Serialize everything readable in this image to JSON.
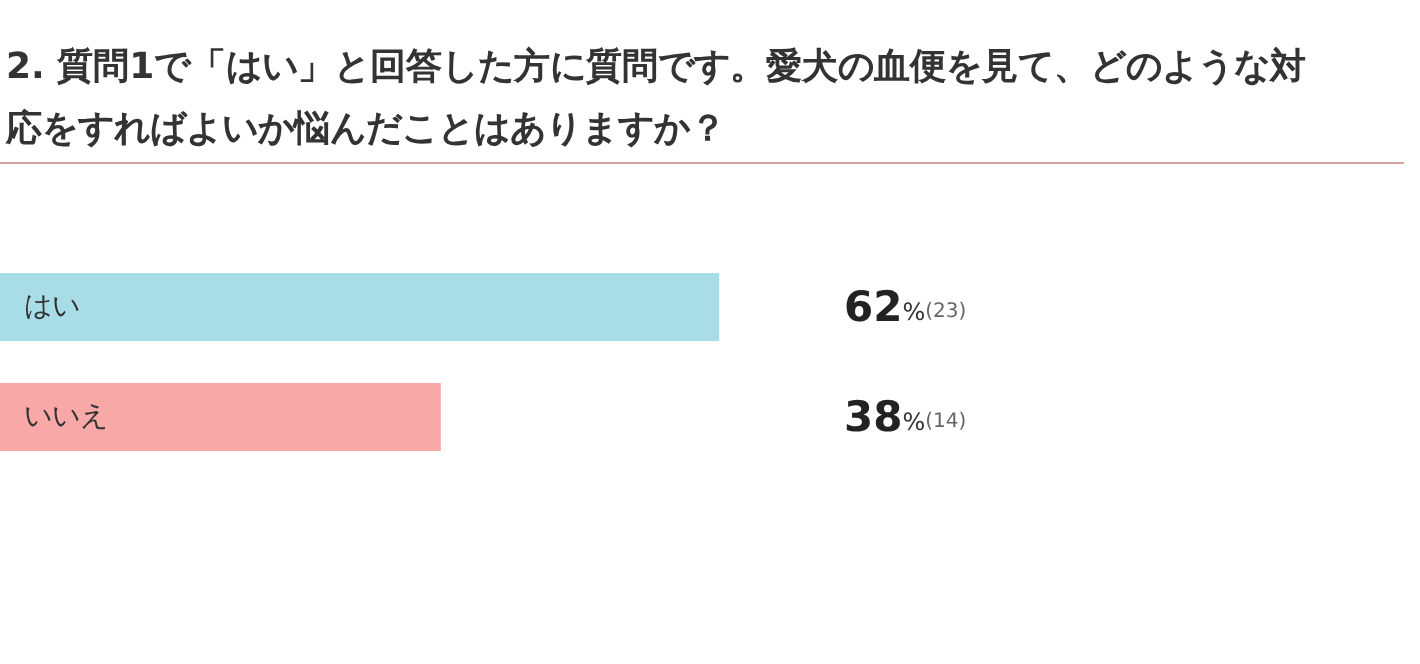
{
  "chart_data": {
    "type": "bar",
    "orientation": "horizontal",
    "title": "2. 質問1で「はい」と回答した方に質問です。愛犬の血便を見て、どのような対応をすればよいか悩んだことはありますか？",
    "categories": [
      "はい",
      "いいえ"
    ],
    "values": [
      62,
      38
    ],
    "colors": [
      "#a8dde8",
      "#f9a8a8"
    ],
    "value_labels": [
      "62%(23)",
      "38%(14)"
    ],
    "tick_labels": "y"
  }
}
